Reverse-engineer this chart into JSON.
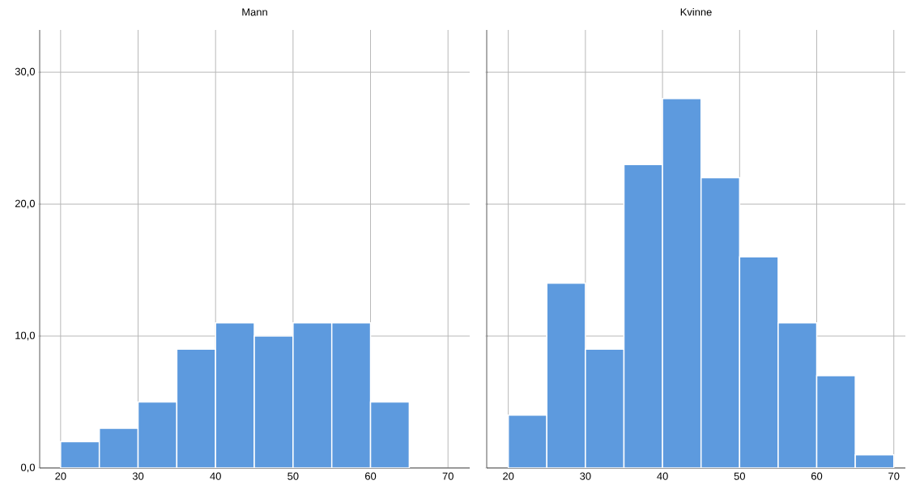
{
  "chart_data": [
    {
      "type": "histogram",
      "title": "Mann",
      "bins": [
        20,
        25,
        30,
        35,
        40,
        45,
        50,
        55,
        60,
        65
      ],
      "values": [
        2,
        3,
        5,
        9,
        11,
        10,
        11,
        11,
        5
      ],
      "color": "#5d9ade",
      "xlim": [
        17.3,
        72.8
      ],
      "ylim": [
        0,
        33.2
      ],
      "xticks": [
        20,
        30,
        40,
        50,
        60,
        70
      ],
      "yticks": [
        {
          "value": 0,
          "label": "0,0"
        },
        {
          "value": 10,
          "label": "10,0"
        },
        {
          "value": 20,
          "label": "20,0"
        },
        {
          "value": 30,
          "label": "30,0"
        }
      ],
      "grid": true
    },
    {
      "type": "histogram",
      "title": "Kvinne",
      "bins": [
        20,
        25,
        30,
        35,
        40,
        45,
        50,
        55,
        60,
        65,
        70
      ],
      "values": [
        4,
        14,
        9,
        23,
        28,
        22,
        16,
        11,
        7,
        1
      ],
      "color": "#5d9ade",
      "xlim": [
        17.2,
        71.5
      ],
      "ylim": [
        0,
        33.2
      ],
      "xticks": [
        20,
        30,
        40,
        50,
        60,
        70
      ],
      "yticks": [
        0,
        10,
        20,
        30
      ],
      "grid": true,
      "tick_labels": "x"
    }
  ]
}
